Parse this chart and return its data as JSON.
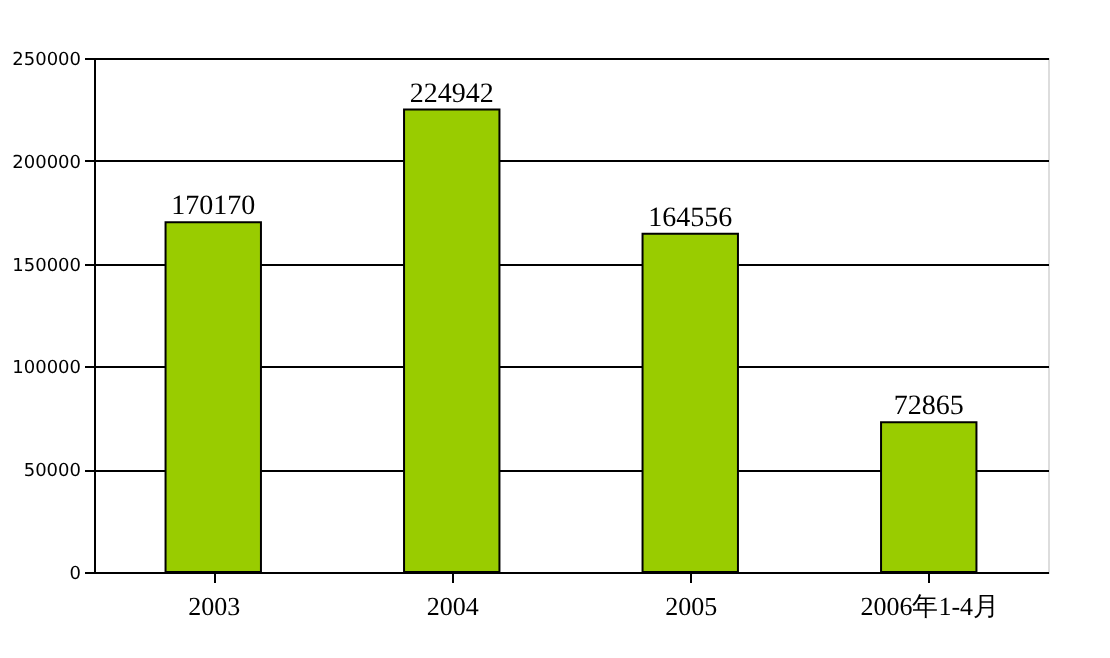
{
  "chart_data": {
    "type": "bar",
    "categories": [
      "2003",
      "2004",
      "2005",
      "2006年1-4月"
    ],
    "values": [
      170170,
      224942,
      164556,
      72865
    ],
    "color": "#99cc00",
    "ylim": [
      0,
      250000
    ],
    "yticks": [
      0,
      50000,
      100000,
      150000,
      200000,
      250000
    ],
    "grid": "y",
    "data_labels": true
  }
}
